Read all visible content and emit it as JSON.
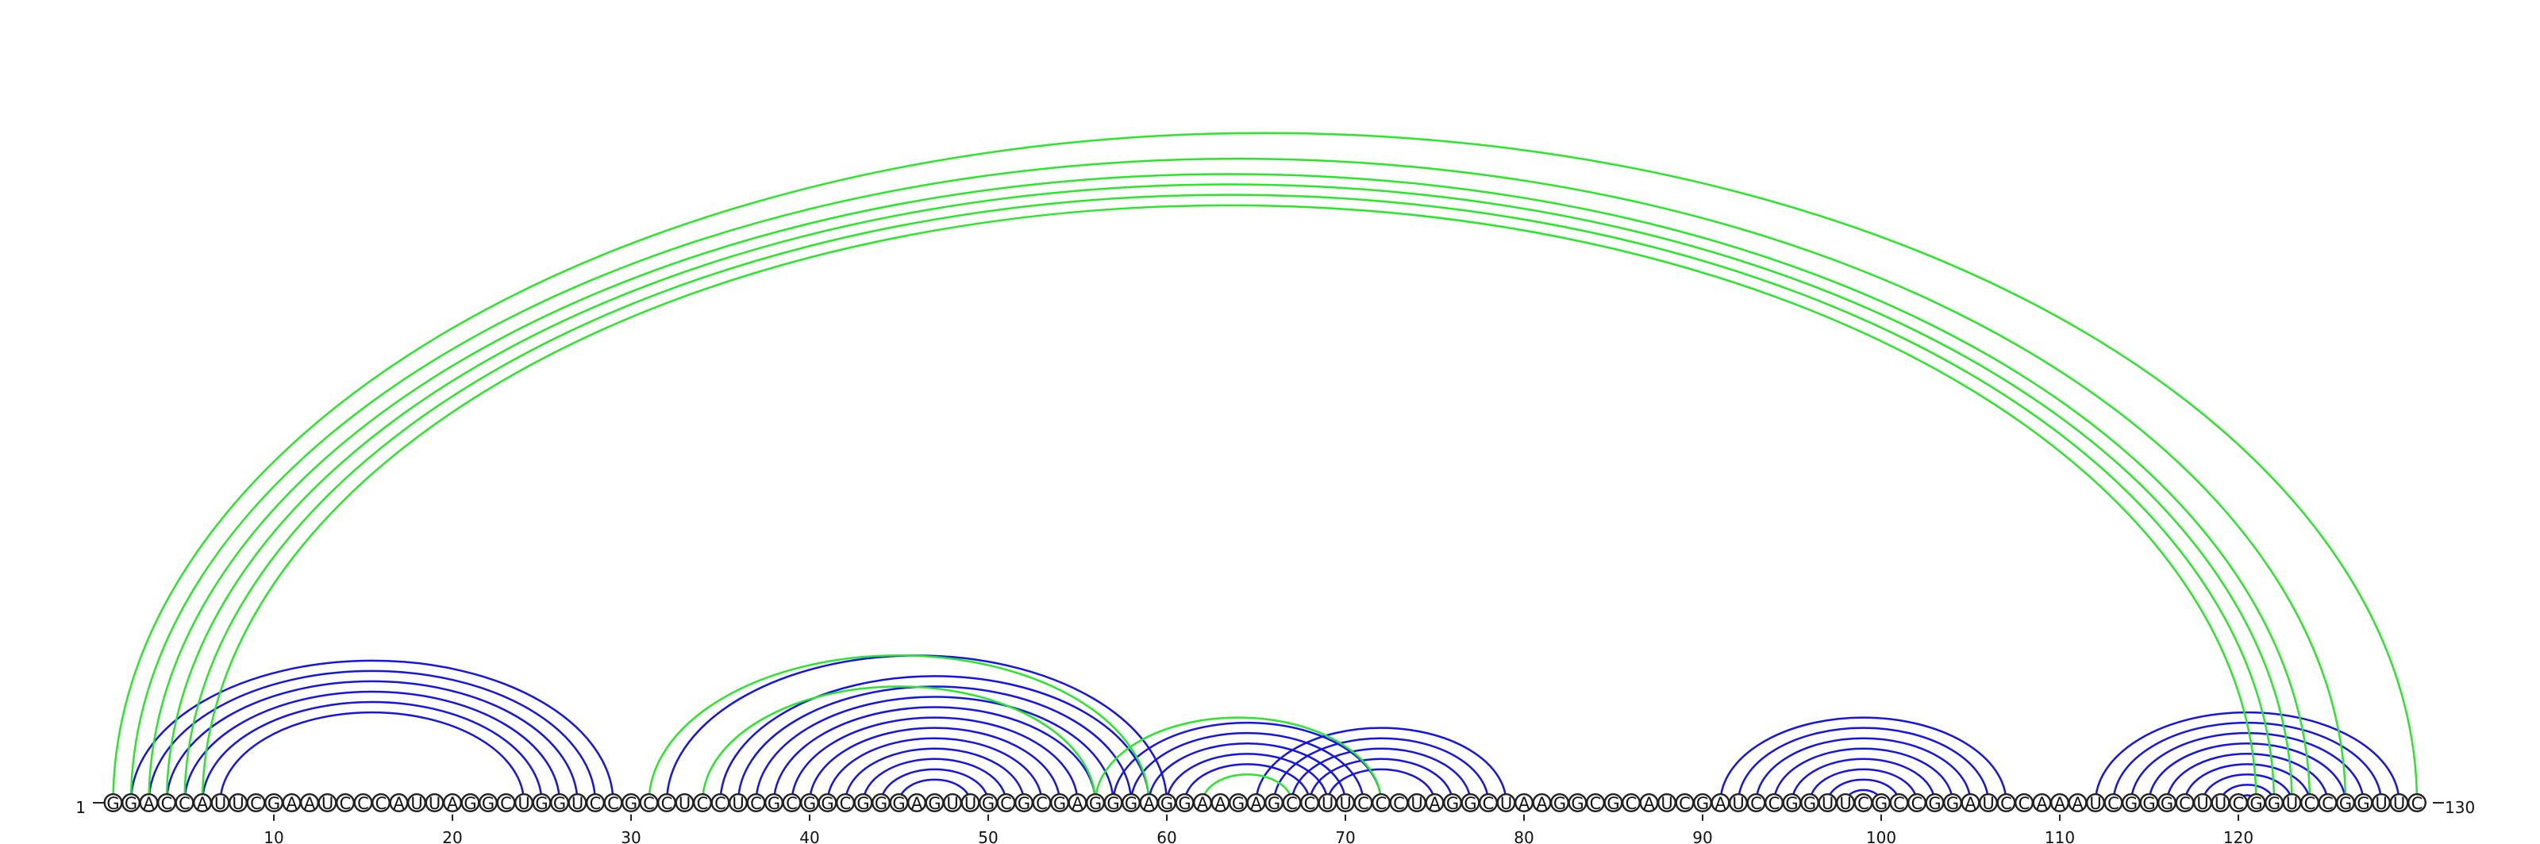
{
  "sequence": "GGACCAUUCGAAUCCCAUUAGGCUGGUCCGCCUCCUCGCGGCGGGAGUUGCGCGAGGGAGGAAGAGCCUUCCCUAGGCUAAGGCGCAUCGAUCCGGUUCGCCGGAUCCAAAUCGGGCUUCGGUCCGGUUC",
  "start_label": "1",
  "end_label": "130",
  "ticks": [
    10,
    20,
    30,
    40,
    50,
    60,
    70,
    80,
    90,
    100,
    110,
    120
  ],
  "colors": {
    "structure_a": "#1414e6",
    "structure_b": "#28e628"
  },
  "structure_a_pairs": [
    [
      2,
      29
    ],
    [
      3,
      28
    ],
    [
      4,
      27
    ],
    [
      5,
      26
    ],
    [
      6,
      25
    ],
    [
      7,
      24
    ],
    [
      32,
      60
    ],
    [
      35,
      59
    ],
    [
      36,
      58
    ],
    [
      37,
      57
    ],
    [
      38,
      56
    ],
    [
      39,
      55
    ],
    [
      40,
      54
    ],
    [
      41,
      53
    ],
    [
      42,
      52
    ],
    [
      43,
      51
    ],
    [
      44,
      50
    ],
    [
      45,
      49
    ],
    [
      57,
      72
    ],
    [
      58,
      71
    ],
    [
      59,
      70
    ],
    [
      60,
      69
    ],
    [
      61,
      68
    ],
    [
      65,
      79
    ],
    [
      66,
      78
    ],
    [
      67,
      77
    ],
    [
      68,
      76
    ],
    [
      69,
      75
    ],
    [
      91,
      107
    ],
    [
      92,
      106
    ],
    [
      93,
      105
    ],
    [
      94,
      104
    ],
    [
      95,
      103
    ],
    [
      96,
      102
    ],
    [
      97,
      101
    ],
    [
      98,
      100
    ],
    [
      112,
      129
    ],
    [
      113,
      128
    ],
    [
      114,
      127
    ],
    [
      115,
      126
    ],
    [
      116,
      125
    ],
    [
      117,
      124
    ],
    [
      118,
      123
    ],
    [
      119,
      122
    ],
    [
      120,
      121
    ]
  ],
  "structure_b_pairs": [
    [
      1,
      130
    ],
    [
      2,
      126
    ],
    [
      3,
      124
    ],
    [
      4,
      123
    ],
    [
      5,
      122
    ],
    [
      6,
      121
    ],
    [
      31,
      59
    ],
    [
      34,
      56
    ],
    [
      56,
      72
    ],
    [
      62,
      67
    ]
  ]
}
